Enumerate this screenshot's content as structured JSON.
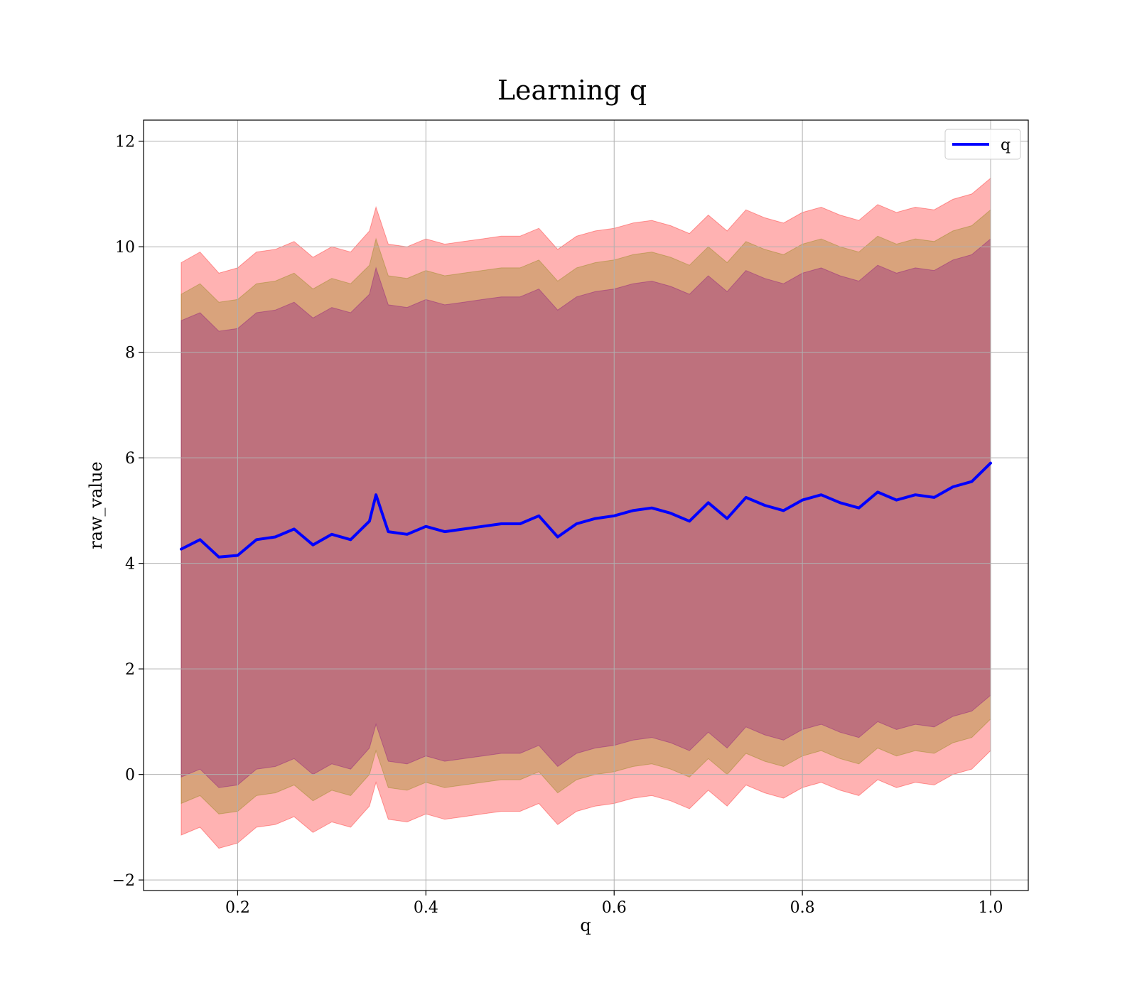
{
  "chart_data": {
    "type": "area",
    "title": "Learning q",
    "xlabel": "q",
    "ylabel": "raw_value",
    "xlim": [
      0.1,
      1.04
    ],
    "ylim": [
      -2.2,
      12.4
    ],
    "xticks": [
      0.2,
      0.4,
      0.6,
      0.8,
      1.0
    ],
    "xtick_labels": [
      "0.2",
      "0.4",
      "0.6",
      "0.8",
      "1.0"
    ],
    "yticks": [
      -2,
      0,
      2,
      4,
      6,
      8,
      10,
      12
    ],
    "ytick_labels": [
      "−2",
      "0",
      "2",
      "4",
      "6",
      "8",
      "10",
      "12"
    ],
    "grid": true,
    "legend": {
      "placement": "top-right",
      "entries": [
        "q"
      ]
    },
    "series": [
      {
        "name": "q",
        "color": "#0000ff",
        "x": [
          0.14,
          0.16,
          0.18,
          0.2,
          0.22,
          0.24,
          0.26,
          0.28,
          0.3,
          0.32,
          0.34,
          0.347,
          0.36,
          0.38,
          0.4,
          0.42,
          0.44,
          0.46,
          0.48,
          0.5,
          0.52,
          0.54,
          0.56,
          0.58,
          0.6,
          0.62,
          0.64,
          0.66,
          0.68,
          0.7,
          0.72,
          0.74,
          0.76,
          0.78,
          0.8,
          0.82,
          0.84,
          0.86,
          0.88,
          0.9,
          0.92,
          0.94,
          0.96,
          0.98,
          1.0
        ],
        "values": [
          4.27,
          4.45,
          4.12,
          4.15,
          4.45,
          4.5,
          4.65,
          4.35,
          4.55,
          4.45,
          4.8,
          5.3,
          4.6,
          4.55,
          4.7,
          4.6,
          4.65,
          4.7,
          4.75,
          4.75,
          4.9,
          4.5,
          4.75,
          4.85,
          4.9,
          5.0,
          5.05,
          4.95,
          4.8,
          5.15,
          4.85,
          5.25,
          5.1,
          5.0,
          5.2,
          5.3,
          5.15,
          5.05,
          5.35,
          5.2,
          5.3,
          5.25,
          5.45,
          5.55,
          5.9
        ]
      }
    ],
    "bands": [
      {
        "color": "#ff0000",
        "opacity": 0.3,
        "x": [
          0.14,
          0.16,
          0.18,
          0.2,
          0.22,
          0.24,
          0.26,
          0.28,
          0.3,
          0.32,
          0.34,
          0.347,
          0.36,
          0.38,
          0.4,
          0.42,
          0.44,
          0.46,
          0.48,
          0.5,
          0.52,
          0.54,
          0.56,
          0.58,
          0.6,
          0.62,
          0.64,
          0.66,
          0.68,
          0.7,
          0.72,
          0.74,
          0.76,
          0.78,
          0.8,
          0.82,
          0.84,
          0.86,
          0.88,
          0.9,
          0.92,
          0.94,
          0.96,
          0.98,
          1.0
        ],
        "upper": [
          9.7,
          9.9,
          9.5,
          9.6,
          9.9,
          9.95,
          10.1,
          9.8,
          10.0,
          9.9,
          10.3,
          10.75,
          10.05,
          10.0,
          10.15,
          10.05,
          10.1,
          10.15,
          10.2,
          10.2,
          10.35,
          9.95,
          10.2,
          10.3,
          10.35,
          10.45,
          10.5,
          10.4,
          10.25,
          10.6,
          10.3,
          10.7,
          10.55,
          10.45,
          10.65,
          10.75,
          10.6,
          10.5,
          10.8,
          10.65,
          10.75,
          10.7,
          10.9,
          11.0,
          11.3
        ],
        "lower": [
          -1.15,
          -1.0,
          -1.4,
          -1.3,
          -1.0,
          -0.95,
          -0.8,
          -1.1,
          -0.9,
          -1.0,
          -0.6,
          -0.15,
          -0.85,
          -0.9,
          -0.75,
          -0.85,
          -0.8,
          -0.75,
          -0.7,
          -0.7,
          -0.55,
          -0.95,
          -0.7,
          -0.6,
          -0.55,
          -0.45,
          -0.4,
          -0.5,
          -0.65,
          -0.3,
          -0.6,
          -0.2,
          -0.35,
          -0.45,
          -0.25,
          -0.15,
          -0.3,
          -0.4,
          -0.1,
          -0.25,
          -0.15,
          -0.2,
          0.0,
          0.1,
          0.45
        ]
      },
      {
        "color": "#808000",
        "opacity": 0.3,
        "x": [
          0.14,
          0.16,
          0.18,
          0.2,
          0.22,
          0.24,
          0.26,
          0.28,
          0.3,
          0.32,
          0.34,
          0.347,
          0.36,
          0.38,
          0.4,
          0.42,
          0.44,
          0.46,
          0.48,
          0.5,
          0.52,
          0.54,
          0.56,
          0.58,
          0.6,
          0.62,
          0.64,
          0.66,
          0.68,
          0.7,
          0.72,
          0.74,
          0.76,
          0.78,
          0.8,
          0.82,
          0.84,
          0.86,
          0.88,
          0.9,
          0.92,
          0.94,
          0.96,
          0.98,
          1.0
        ],
        "upper": [
          9.1,
          9.3,
          8.95,
          9.0,
          9.3,
          9.35,
          9.5,
          9.2,
          9.4,
          9.3,
          9.65,
          10.15,
          9.45,
          9.4,
          9.55,
          9.45,
          9.5,
          9.55,
          9.6,
          9.6,
          9.75,
          9.35,
          9.6,
          9.7,
          9.75,
          9.85,
          9.9,
          9.8,
          9.65,
          10.0,
          9.7,
          10.1,
          9.95,
          9.85,
          10.05,
          10.15,
          10.0,
          9.9,
          10.2,
          10.05,
          10.15,
          10.1,
          10.3,
          10.4,
          10.7
        ],
        "lower": [
          -0.55,
          -0.4,
          -0.75,
          -0.7,
          -0.4,
          -0.35,
          -0.2,
          -0.5,
          -0.3,
          -0.4,
          0.0,
          0.45,
          -0.25,
          -0.3,
          -0.15,
          -0.25,
          -0.2,
          -0.15,
          -0.1,
          -0.1,
          0.05,
          -0.35,
          -0.1,
          0.0,
          0.05,
          0.15,
          0.2,
          0.1,
          -0.05,
          0.3,
          0.0,
          0.4,
          0.25,
          0.15,
          0.35,
          0.45,
          0.3,
          0.2,
          0.5,
          0.35,
          0.45,
          0.4,
          0.6,
          0.7,
          1.05
        ]
      },
      {
        "color": "#800080",
        "opacity": 0.3,
        "x": [
          0.14,
          0.16,
          0.18,
          0.2,
          0.22,
          0.24,
          0.26,
          0.28,
          0.3,
          0.32,
          0.34,
          0.347,
          0.36,
          0.38,
          0.4,
          0.42,
          0.44,
          0.46,
          0.48,
          0.5,
          0.52,
          0.54,
          0.56,
          0.58,
          0.6,
          0.62,
          0.64,
          0.66,
          0.68,
          0.7,
          0.72,
          0.74,
          0.76,
          0.78,
          0.8,
          0.82,
          0.84,
          0.86,
          0.88,
          0.9,
          0.92,
          0.94,
          0.96,
          0.98,
          1.0
        ],
        "upper": [
          8.6,
          8.75,
          8.4,
          8.45,
          8.75,
          8.8,
          8.95,
          8.65,
          8.85,
          8.75,
          9.1,
          9.6,
          8.9,
          8.85,
          9.0,
          8.9,
          8.95,
          9.0,
          9.05,
          9.05,
          9.2,
          8.8,
          9.05,
          9.15,
          9.2,
          9.3,
          9.35,
          9.25,
          9.1,
          9.45,
          9.15,
          9.55,
          9.4,
          9.3,
          9.5,
          9.6,
          9.45,
          9.35,
          9.65,
          9.5,
          9.6,
          9.55,
          9.75,
          9.85,
          10.15
        ],
        "lower": [
          -0.05,
          0.1,
          -0.25,
          -0.2,
          0.1,
          0.15,
          0.3,
          0.0,
          0.2,
          0.1,
          0.5,
          0.95,
          0.25,
          0.2,
          0.35,
          0.25,
          0.3,
          0.35,
          0.4,
          0.4,
          0.55,
          0.15,
          0.4,
          0.5,
          0.55,
          0.65,
          0.7,
          0.6,
          0.45,
          0.8,
          0.5,
          0.9,
          0.75,
          0.65,
          0.85,
          0.95,
          0.8,
          0.7,
          1.0,
          0.85,
          0.95,
          0.9,
          1.1,
          1.2,
          1.5
        ]
      }
    ]
  }
}
